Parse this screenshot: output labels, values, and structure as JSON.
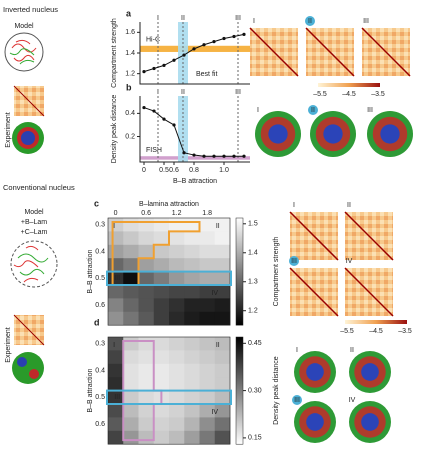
{
  "figure": {
    "top_title": "Inverted nucleus",
    "model": "Model",
    "experiment": "Experiment",
    "bottom_title": "Conventional nucleus",
    "model2": "Model",
    "b_lam": "+B–Lam",
    "c_lam": "+C–Lam",
    "experiment2": "Experiment",
    "maps_top": [
      "I",
      "II",
      "III"
    ],
    "colorbar_ticks_top": [
      "–5.5",
      "–4.5",
      "–3.5"
    ],
    "nuclei_top": [
      "I",
      "II",
      "III"
    ],
    "maps_bottom": [
      "I",
      "II",
      "III",
      "IV"
    ],
    "colorbar_ticks_bottom": [
      "–5.5",
      "–4.5",
      "–3.5"
    ],
    "nuclei_bottom": [
      "I",
      "II",
      "III",
      "IV"
    ]
  },
  "chart_data": [
    {
      "type": "line",
      "panel": "a",
      "ylabel": "Compartment strength",
      "categories": [
        "0",
        null,
        "0.5",
        "0.6",
        null,
        "0.8",
        null,
        null,
        "1.0",
        null,
        null
      ],
      "values": [
        1.22,
        1.25,
        1.28,
        1.33,
        1.38,
        1.44,
        1.48,
        1.51,
        1.54,
        1.56,
        1.58
      ],
      "ylim": [
        1.1,
        1.7
      ],
      "yticks": [
        1.2,
        1.4,
        1.6
      ],
      "band": [
        1.41,
        1.47
      ],
      "band_label": "Hi-C",
      "best_fit_label": "Best fit",
      "annotations": [
        "I",
        "II",
        "III"
      ]
    },
    {
      "type": "line",
      "panel": "b",
      "ylabel": "Density peak distance",
      "xlabel": "B–B attraction",
      "categories": [
        "0",
        null,
        "0.5",
        "0.6",
        null,
        "0.8",
        null,
        null,
        "1.0",
        null,
        null
      ],
      "values": [
        0.45,
        0.42,
        0.35,
        0.3,
        0.06,
        0.04,
        0.03,
        0.03,
        0.03,
        0.03,
        0.03
      ],
      "ylim": [
        -0.02,
        0.55
      ],
      "yticks": [
        0.2,
        0.4
      ],
      "band": [
        0,
        0.03
      ],
      "band_label": "FISH",
      "annotations": [
        "I",
        "II",
        "III"
      ]
    },
    {
      "type": "heatmap",
      "panel": "c",
      "xlabel": "B–lamina attraction",
      "ylabel": "B–B attraction",
      "colorbar_label": "Compartment strength",
      "x_categories": [
        "0",
        null,
        "0.6",
        null,
        "1.2",
        null,
        "1.8",
        null
      ],
      "y_categories": [
        "0.3",
        null,
        "0.4",
        null,
        "0.5",
        null,
        "0.6",
        null
      ],
      "values": [
        [
          1.45,
          1.47,
          1.48,
          1.49,
          1.5,
          1.5,
          1.5,
          1.5
        ],
        [
          1.42,
          1.44,
          1.46,
          1.47,
          1.48,
          1.49,
          1.49,
          1.5
        ],
        [
          1.38,
          1.4,
          1.42,
          1.44,
          1.45,
          1.46,
          1.47,
          1.47
        ],
        [
          1.3,
          1.33,
          1.38,
          1.4,
          1.42,
          1.43,
          1.44,
          1.44
        ],
        [
          1.22,
          1.17,
          1.3,
          1.33,
          1.37,
          1.39,
          1.4,
          1.4
        ],
        [
          1.3,
          1.28,
          1.27,
          1.26,
          1.25,
          1.25,
          1.24,
          1.24
        ],
        [
          1.34,
          1.3,
          1.27,
          1.24,
          1.22,
          1.2,
          1.2,
          1.19
        ],
        [
          1.36,
          1.32,
          1.28,
          1.24,
          1.21,
          1.19,
          1.18,
          1.18
        ]
      ],
      "zlim": [
        1.15,
        1.52
      ],
      "zticks": [
        1.2,
        1.3,
        1.4,
        1.5
      ],
      "colormap": "gray",
      "annotations": [
        "I",
        "II",
        "III",
        "IV"
      ]
    },
    {
      "type": "heatmap",
      "panel": "d",
      "ylabel": "B–B attraction",
      "colorbar_label": "Density peak distance",
      "x_categories": [
        "0",
        null,
        "0.6",
        null,
        "1.2",
        null,
        "1.8",
        null
      ],
      "y_categories": [
        "0.3",
        null,
        "0.4",
        null,
        "0.5",
        null,
        "0.6",
        null
      ],
      "values": [
        [
          0.36,
          0.2,
          0.18,
          0.18,
          0.19,
          0.2,
          0.21,
          0.22
        ],
        [
          0.38,
          0.18,
          0.17,
          0.17,
          0.18,
          0.19,
          0.2,
          0.21
        ],
        [
          0.4,
          0.17,
          0.16,
          0.16,
          0.17,
          0.18,
          0.19,
          0.2
        ],
        [
          0.41,
          0.17,
          0.16,
          0.16,
          0.17,
          0.18,
          0.19,
          0.2
        ],
        [
          0.4,
          0.2,
          0.18,
          0.17,
          0.18,
          0.19,
          0.2,
          0.22
        ],
        [
          0.37,
          0.22,
          0.19,
          0.18,
          0.19,
          0.21,
          0.24,
          0.27
        ],
        [
          0.35,
          0.24,
          0.2,
          0.19,
          0.2,
          0.23,
          0.28,
          0.32
        ],
        [
          0.38,
          0.27,
          0.22,
          0.2,
          0.22,
          0.26,
          0.31,
          0.36
        ]
      ],
      "zlim": [
        0.13,
        0.47
      ],
      "zticks": [
        0.15,
        {
          "value": 0.3,
          "label": "0.30"
        },
        0.45
      ],
      "colormap": "gray_r",
      "annotations": [
        "I",
        "II",
        "III",
        "IV"
      ]
    }
  ]
}
